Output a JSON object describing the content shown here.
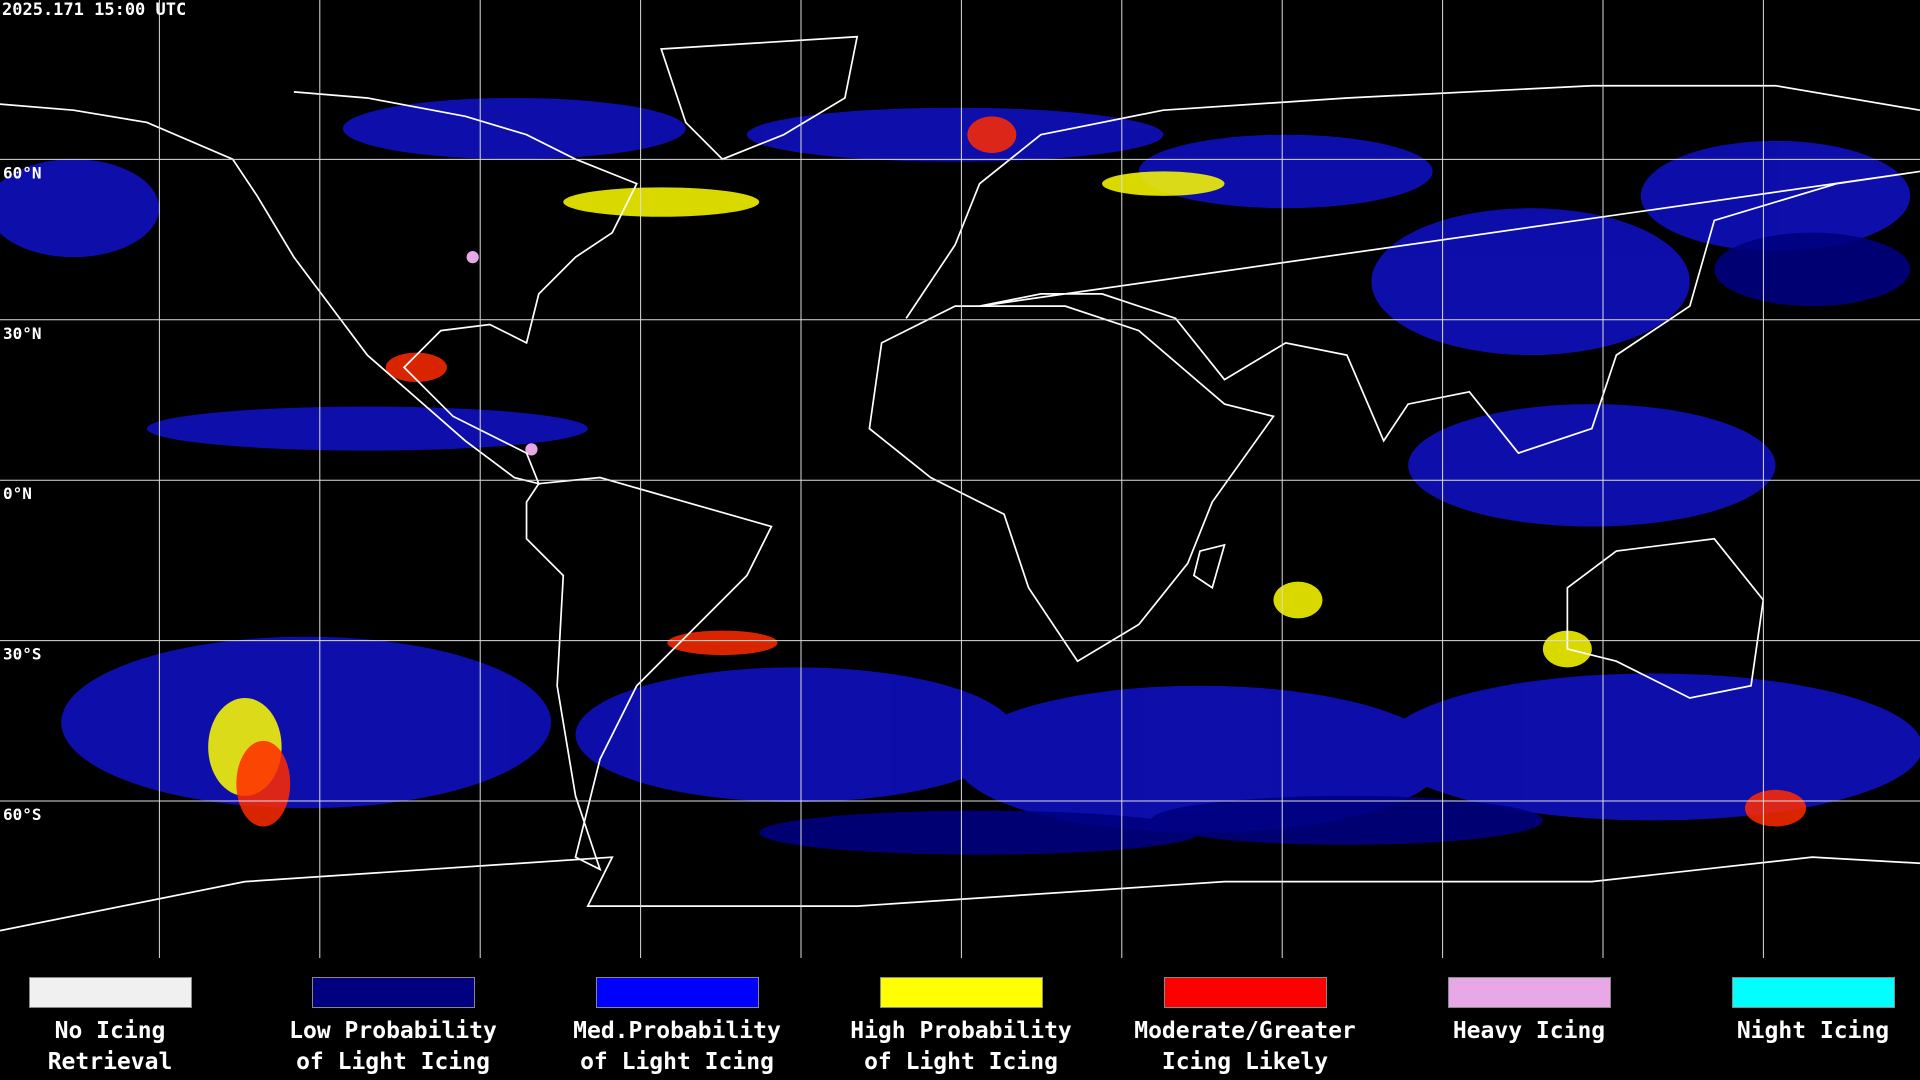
{
  "timestamp": "2025.171 15:00 UTC",
  "latitude_labels": [
    "60°N",
    "30°N",
    "0°N",
    "30°S",
    "60°S"
  ],
  "legend": [
    {
      "label_lines": [
        "No Icing",
        "Retrieval"
      ],
      "color": "#f0f0f0"
    },
    {
      "label_lines": [
        "Low Probability",
        "of Light Icing"
      ],
      "color": "#000080"
    },
    {
      "label_lines": [
        "Med.Probability",
        "of Light Icing"
      ],
      "color": "#0000ff"
    },
    {
      "label_lines": [
        "High Probability",
        "of Light Icing"
      ],
      "color": "#ffff00"
    },
    {
      "label_lines": [
        "Moderate/Greater",
        "Icing Likely"
      ],
      "color": "#ff0000"
    },
    {
      "label_lines": [
        "Heavy Icing"
      ],
      "color": "#e8a8e8"
    },
    {
      "label_lines": [
        "Night Icing"
      ],
      "color": "#00ffff"
    }
  ]
}
